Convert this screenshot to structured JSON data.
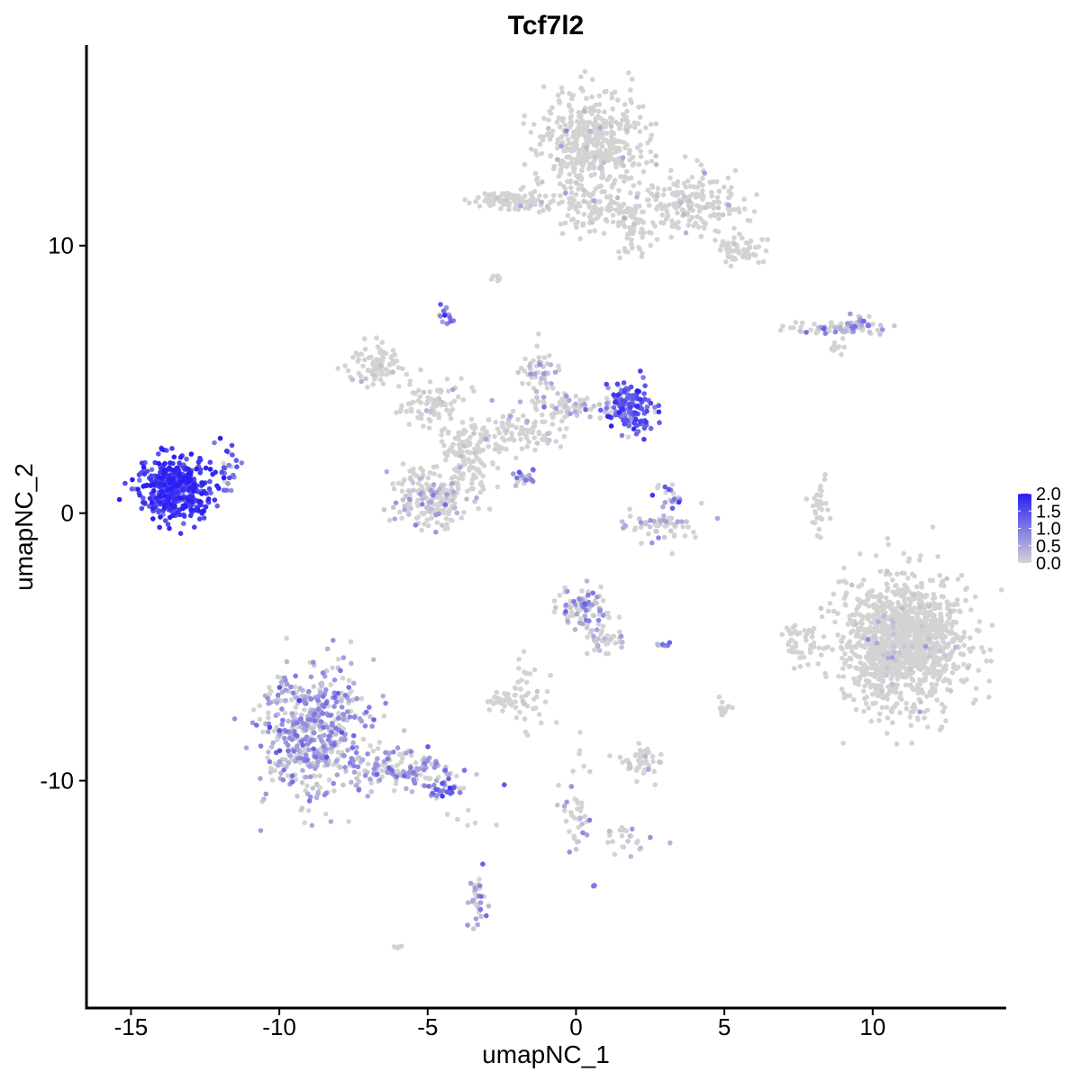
{
  "chart_data": {
    "type": "scatter",
    "title": "Tcf7l2",
    "xlabel": "umapNC_1",
    "ylabel": "umapNC_2",
    "xlim": [
      -16.5,
      14.5
    ],
    "ylim": [
      -18.5,
      17.5
    ],
    "x_ticks": [
      -15,
      -10,
      -5,
      0,
      5,
      10
    ],
    "x_tick_labels": [
      "-15",
      "-10",
      "-5",
      "0",
      "5",
      "10"
    ],
    "y_ticks": [
      -10,
      0,
      10
    ],
    "y_tick_labels": [
      "-10",
      "0",
      "10"
    ],
    "grid": false,
    "legend": {
      "placement": "right",
      "type": "colorbar",
      "min": 0.0,
      "max": 2.0,
      "ticks": [
        2.0,
        1.5,
        1.0,
        0.5,
        0.0
      ],
      "tick_labels": [
        "2.0",
        "1.5",
        "1.0",
        "0.5",
        "0.0"
      ],
      "color_low": "#d3d3d3",
      "color_high": "#2a1ff5"
    },
    "clusters": [
      {
        "cx": -13.5,
        "cy": 0.9,
        "sx": 0.8,
        "sy": 0.7,
        "n": 420,
        "mean_expr": 1.65,
        "pos_frac": 1.0
      },
      {
        "cx": -11.7,
        "cy": 1.8,
        "sx": 0.3,
        "sy": 0.6,
        "n": 25,
        "mean_expr": 1.2,
        "pos_frac": 0.9
      },
      {
        "cx": -8.8,
        "cy": -8.2,
        "sx": 1.1,
        "sy": 1.5,
        "n": 520,
        "mean_expr": 0.55,
        "pos_frac": 0.65
      },
      {
        "cx": -6.0,
        "cy": -9.6,
        "sx": 1.3,
        "sy": 0.45,
        "n": 160,
        "mean_expr": 0.6,
        "pos_frac": 0.55
      },
      {
        "cx": -4.3,
        "cy": -10.3,
        "sx": 0.4,
        "sy": 0.25,
        "n": 25,
        "mean_expr": 1.1,
        "pos_frac": 0.9
      },
      {
        "cx": 0.5,
        "cy": 13.8,
        "sx": 1.1,
        "sy": 1.3,
        "n": 480,
        "mean_expr": 0.05,
        "pos_frac": 0.04
      },
      {
        "cx": 3.8,
        "cy": 11.6,
        "sx": 1.2,
        "sy": 0.7,
        "n": 200,
        "mean_expr": 0.05,
        "pos_frac": 0.05
      },
      {
        "cx": 5.6,
        "cy": 9.8,
        "sx": 0.5,
        "sy": 0.4,
        "n": 60,
        "mean_expr": 0.02,
        "pos_frac": 0.02
      },
      {
        "cx": -2.0,
        "cy": 11.7,
        "sx": 0.9,
        "sy": 0.25,
        "n": 90,
        "mean_expr": 0.05,
        "pos_frac": 0.04
      },
      {
        "cx": 0.8,
        "cy": 11.2,
        "sx": 1.0,
        "sy": 0.5,
        "n": 90,
        "mean_expr": 0.05,
        "pos_frac": 0.03
      },
      {
        "cx": 1.9,
        "cy": 10.5,
        "sx": 0.3,
        "sy": 0.7,
        "n": 40,
        "mean_expr": 0.05,
        "pos_frac": 0.05
      },
      {
        "cx": -2.7,
        "cy": 8.8,
        "sx": 0.15,
        "sy": 0.1,
        "n": 8,
        "mean_expr": 0.0,
        "pos_frac": 0.0
      },
      {
        "cx": -4.4,
        "cy": 7.4,
        "sx": 0.15,
        "sy": 0.2,
        "n": 14,
        "mean_expr": 1.0,
        "pos_frac": 0.9
      },
      {
        "cx": -6.8,
        "cy": 5.5,
        "sx": 0.6,
        "sy": 0.5,
        "n": 80,
        "mean_expr": 0.1,
        "pos_frac": 0.1
      },
      {
        "cx": -5.0,
        "cy": 4.2,
        "sx": 0.7,
        "sy": 0.6,
        "n": 80,
        "mean_expr": 0.1,
        "pos_frac": 0.1
      },
      {
        "cx": -3.6,
        "cy": 2.2,
        "sx": 0.6,
        "sy": 0.9,
        "n": 130,
        "mean_expr": 0.1,
        "pos_frac": 0.1
      },
      {
        "cx": -4.9,
        "cy": 0.6,
        "sx": 0.9,
        "sy": 0.7,
        "n": 200,
        "mean_expr": 0.3,
        "pos_frac": 0.25
      },
      {
        "cx": -1.8,
        "cy": 3.1,
        "sx": 0.9,
        "sy": 0.4,
        "n": 80,
        "mean_expr": 0.15,
        "pos_frac": 0.15
      },
      {
        "cx": -1.3,
        "cy": 5.3,
        "sx": 0.4,
        "sy": 0.6,
        "n": 50,
        "mean_expr": 0.3,
        "pos_frac": 0.3
      },
      {
        "cx": -0.3,
        "cy": 4.0,
        "sx": 0.9,
        "sy": 0.3,
        "n": 70,
        "mean_expr": 0.35,
        "pos_frac": 0.35
      },
      {
        "cx": 1.8,
        "cy": 4.0,
        "sx": 0.5,
        "sy": 0.5,
        "n": 150,
        "mean_expr": 1.3,
        "pos_frac": 0.9
      },
      {
        "cx": -1.8,
        "cy": 1.2,
        "sx": 0.3,
        "sy": 0.25,
        "n": 20,
        "mean_expr": 0.6,
        "pos_frac": 0.7
      },
      {
        "cx": 3.2,
        "cy": 0.6,
        "sx": 0.3,
        "sy": 0.3,
        "n": 20,
        "mean_expr": 0.9,
        "pos_frac": 0.7
      },
      {
        "cx": 2.8,
        "cy": -0.5,
        "sx": 0.8,
        "sy": 0.4,
        "n": 60,
        "mean_expr": 0.4,
        "pos_frac": 0.4
      },
      {
        "cx": 8.5,
        "cy": 6.9,
        "sx": 1.1,
        "sy": 0.15,
        "n": 60,
        "mean_expr": 0.4,
        "pos_frac": 0.4
      },
      {
        "cx": 9.5,
        "cy": 7.0,
        "sx": 0.4,
        "sy": 0.2,
        "n": 30,
        "mean_expr": 0.6,
        "pos_frac": 0.6
      },
      {
        "cx": 8.8,
        "cy": 6.2,
        "sx": 0.3,
        "sy": 0.2,
        "n": 12,
        "mean_expr": 0.0,
        "pos_frac": 0.0
      },
      {
        "cx": 8.2,
        "cy": 0.3,
        "sx": 0.2,
        "sy": 0.6,
        "n": 30,
        "mean_expr": 0.0,
        "pos_frac": 0.0
      },
      {
        "cx": 11.0,
        "cy": -4.9,
        "sx": 1.3,
        "sy": 1.5,
        "n": 1300,
        "mean_expr": 0.05,
        "pos_frac": 0.04
      },
      {
        "cx": 7.6,
        "cy": -4.7,
        "sx": 0.4,
        "sy": 0.6,
        "n": 40,
        "mean_expr": 0.02,
        "pos_frac": 0.02
      },
      {
        "cx": 0.3,
        "cy": -3.6,
        "sx": 0.6,
        "sy": 0.5,
        "n": 80,
        "mean_expr": 0.55,
        "pos_frac": 0.55
      },
      {
        "cx": 0.9,
        "cy": -4.8,
        "sx": 0.5,
        "sy": 0.5,
        "n": 40,
        "mean_expr": 0.3,
        "pos_frac": 0.3
      },
      {
        "cx": -1.6,
        "cy": -6.8,
        "sx": 0.5,
        "sy": 0.8,
        "n": 40,
        "mean_expr": 0.1,
        "pos_frac": 0.1
      },
      {
        "cx": -2.5,
        "cy": -7.0,
        "sx": 0.3,
        "sy": 0.2,
        "n": 30,
        "mean_expr": 0.0,
        "pos_frac": 0.0
      },
      {
        "cx": 2.9,
        "cy": -5.0,
        "sx": 0.2,
        "sy": 0.1,
        "n": 8,
        "mean_expr": 0.6,
        "pos_frac": 0.6
      },
      {
        "cx": 5.0,
        "cy": -7.3,
        "sx": 0.15,
        "sy": 0.2,
        "n": 12,
        "mean_expr": 0.1,
        "pos_frac": 0.1
      },
      {
        "cx": 2.2,
        "cy": -9.3,
        "sx": 0.5,
        "sy": 0.4,
        "n": 45,
        "mean_expr": 0.1,
        "pos_frac": 0.1
      },
      {
        "cx": 0.0,
        "cy": -11.0,
        "sx": 0.3,
        "sy": 1.3,
        "n": 40,
        "mean_expr": 0.3,
        "pos_frac": 0.3
      },
      {
        "cx": 1.7,
        "cy": -12.2,
        "sx": 0.6,
        "sy": 0.4,
        "n": 25,
        "mean_expr": 0.3,
        "pos_frac": 0.3
      },
      {
        "cx": -3.3,
        "cy": -14.5,
        "sx": 0.2,
        "sy": 0.6,
        "n": 35,
        "mean_expr": 0.6,
        "pos_frac": 0.6
      },
      {
        "cx": -6.0,
        "cy": -16.2,
        "sx": 0.1,
        "sy": 0.05,
        "n": 5,
        "mean_expr": 0.0,
        "pos_frac": 0.0
      },
      {
        "cx": 0.6,
        "cy": -13.9,
        "sx": 0.05,
        "sy": 0.05,
        "n": 4,
        "mean_expr": 1.0,
        "pos_frac": 1.0
      },
      {
        "cx": -3.6,
        "cy": -11.5,
        "sx": 0.5,
        "sy": 0.2,
        "n": 6,
        "mean_expr": 0.0,
        "pos_frac": 0.0
      },
      {
        "cx": 4.0,
        "cy": -11.0,
        "sx": 0.6,
        "sy": 3.0,
        "n": 0,
        "mean_expr": 0.0,
        "pos_frac": 0.0
      }
    ]
  }
}
